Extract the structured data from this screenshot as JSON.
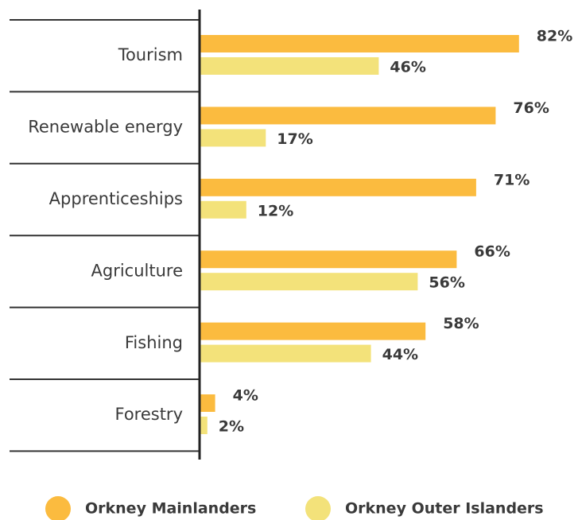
{
  "chart_data": {
    "type": "bar",
    "orientation": "horizontal",
    "categories": [
      "Tourism",
      "Renewable energy",
      "Apprenticeships",
      "Agriculture",
      "Fishing",
      "Forestry"
    ],
    "series": [
      {
        "name": "Orkney Mainlanders",
        "color": "#fbbb3f",
        "values": [
          82,
          76,
          71,
          66,
          58,
          4
        ],
        "value_labels": [
          "82%",
          "76%",
          "71%",
          "66%",
          "58%",
          "4%"
        ]
      },
      {
        "name": "Orkney Outer Islanders",
        "color": "#f3e27a",
        "values": [
          46,
          17,
          12,
          56,
          44,
          2
        ],
        "value_labels": [
          "46%",
          "17%",
          "12%",
          "56%",
          "44%",
          "2%"
        ]
      }
    ]
  }
}
